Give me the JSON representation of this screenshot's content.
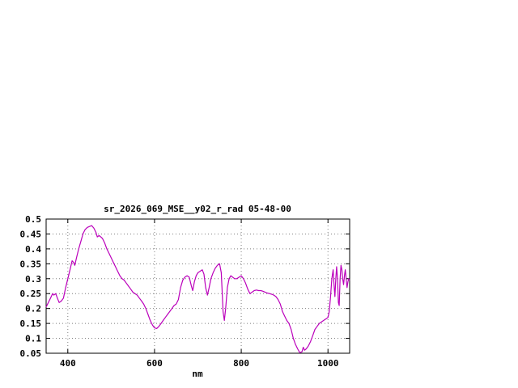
{
  "chart_data": {
    "type": "line",
    "title": "sr_2026_069_MSE__y02_r_rad 05-48-00",
    "xlabel": "nm",
    "ylabel": "",
    "xlim": [
      350,
      1050
    ],
    "ylim": [
      0.05,
      0.5
    ],
    "grid": true,
    "legend": "none",
    "line_color": "#bb00bb",
    "x_ticks": [
      {
        "value": 400,
        "label": "400"
      },
      {
        "value": 600,
        "label": "600"
      },
      {
        "value": 800,
        "label": "800"
      },
      {
        "value": 1000,
        "label": "1000"
      }
    ],
    "y_ticks": [
      {
        "value": 0.5,
        "label": "0.5"
      },
      {
        "value": 0.45,
        "label": "0.45"
      },
      {
        "value": 0.4,
        "label": "0.4"
      },
      {
        "value": 0.35,
        "label": "0.35"
      },
      {
        "value": 0.3,
        "label": "0.3"
      },
      {
        "value": 0.25,
        "label": "0.25"
      },
      {
        "value": 0.2,
        "label": "0.2"
      },
      {
        "value": 0.15,
        "label": "0.15"
      },
      {
        "value": 0.1,
        "label": "0.1"
      },
      {
        "value": 0.05,
        "label": "0.05"
      }
    ],
    "series": [
      {
        "points": [
          [
            350,
            0.205
          ],
          [
            355,
            0.22
          ],
          [
            360,
            0.235
          ],
          [
            365,
            0.25
          ],
          [
            368,
            0.245
          ],
          [
            372,
            0.25
          ],
          [
            376,
            0.235
          ],
          [
            380,
            0.22
          ],
          [
            385,
            0.225
          ],
          [
            390,
            0.235
          ],
          [
            395,
            0.27
          ],
          [
            400,
            0.3
          ],
          [
            405,
            0.33
          ],
          [
            410,
            0.36
          ],
          [
            413,
            0.355
          ],
          [
            416,
            0.345
          ],
          [
            420,
            0.37
          ],
          [
            425,
            0.4
          ],
          [
            430,
            0.425
          ],
          [
            435,
            0.45
          ],
          [
            440,
            0.465
          ],
          [
            445,
            0.472
          ],
          [
            450,
            0.475
          ],
          [
            455,
            0.478
          ],
          [
            460,
            0.47
          ],
          [
            465,
            0.455
          ],
          [
            468,
            0.44
          ],
          [
            472,
            0.445
          ],
          [
            476,
            0.44
          ],
          [
            480,
            0.435
          ],
          [
            485,
            0.42
          ],
          [
            490,
            0.4
          ],
          [
            495,
            0.385
          ],
          [
            500,
            0.37
          ],
          [
            505,
            0.355
          ],
          [
            510,
            0.34
          ],
          [
            515,
            0.325
          ],
          [
            520,
            0.31
          ],
          [
            525,
            0.3
          ],
          [
            530,
            0.295
          ],
          [
            535,
            0.285
          ],
          [
            540,
            0.275
          ],
          [
            545,
            0.265
          ],
          [
            550,
            0.255
          ],
          [
            555,
            0.25
          ],
          [
            560,
            0.245
          ],
          [
            565,
            0.235
          ],
          [
            570,
            0.225
          ],
          [
            575,
            0.215
          ],
          [
            580,
            0.2
          ],
          [
            585,
            0.18
          ],
          [
            590,
            0.16
          ],
          [
            595,
            0.145
          ],
          [
            600,
            0.135
          ],
          [
            605,
            0.133
          ],
          [
            610,
            0.14
          ],
          [
            615,
            0.15
          ],
          [
            620,
            0.16
          ],
          [
            625,
            0.17
          ],
          [
            630,
            0.18
          ],
          [
            635,
            0.19
          ],
          [
            640,
            0.2
          ],
          [
            645,
            0.21
          ],
          [
            650,
            0.215
          ],
          [
            655,
            0.23
          ],
          [
            660,
            0.27
          ],
          [
            665,
            0.295
          ],
          [
            670,
            0.305
          ],
          [
            675,
            0.31
          ],
          [
            680,
            0.305
          ],
          [
            685,
            0.275
          ],
          [
            688,
            0.26
          ],
          [
            692,
            0.29
          ],
          [
            696,
            0.31
          ],
          [
            700,
            0.32
          ],
          [
            705,
            0.325
          ],
          [
            710,
            0.33
          ],
          [
            714,
            0.315
          ],
          [
            718,
            0.27
          ],
          [
            722,
            0.245
          ],
          [
            726,
            0.27
          ],
          [
            730,
            0.3
          ],
          [
            735,
            0.32
          ],
          [
            740,
            0.335
          ],
          [
            745,
            0.345
          ],
          [
            750,
            0.35
          ],
          [
            754,
            0.32
          ],
          [
            758,
            0.19
          ],
          [
            761,
            0.16
          ],
          [
            764,
            0.2
          ],
          [
            768,
            0.27
          ],
          [
            772,
            0.3
          ],
          [
            776,
            0.31
          ],
          [
            780,
            0.305
          ],
          [
            785,
            0.3
          ],
          [
            790,
            0.3
          ],
          [
            795,
            0.305
          ],
          [
            800,
            0.31
          ],
          [
            805,
            0.3
          ],
          [
            810,
            0.285
          ],
          [
            815,
            0.265
          ],
          [
            820,
            0.25
          ],
          [
            825,
            0.255
          ],
          [
            830,
            0.26
          ],
          [
            835,
            0.262
          ],
          [
            840,
            0.26
          ],
          [
            845,
            0.26
          ],
          [
            850,
            0.258
          ],
          [
            855,
            0.255
          ],
          [
            860,
            0.252
          ],
          [
            865,
            0.25
          ],
          [
            870,
            0.248
          ],
          [
            875,
            0.245
          ],
          [
            880,
            0.24
          ],
          [
            885,
            0.23
          ],
          [
            890,
            0.215
          ],
          [
            895,
            0.19
          ],
          [
            900,
            0.175
          ],
          [
            905,
            0.16
          ],
          [
            910,
            0.15
          ],
          [
            915,
            0.13
          ],
          [
            920,
            0.1
          ],
          [
            925,
            0.08
          ],
          [
            930,
            0.065
          ],
          [
            935,
            0.052
          ],
          [
            940,
            0.055
          ],
          [
            943,
            0.07
          ],
          [
            946,
            0.06
          ],
          [
            950,
            0.065
          ],
          [
            955,
            0.075
          ],
          [
            960,
            0.09
          ],
          [
            965,
            0.11
          ],
          [
            970,
            0.13
          ],
          [
            975,
            0.14
          ],
          [
            980,
            0.15
          ],
          [
            985,
            0.155
          ],
          [
            990,
            0.16
          ],
          [
            995,
            0.165
          ],
          [
            1000,
            0.17
          ],
          [
            1003,
            0.19
          ],
          [
            1006,
            0.24
          ],
          [
            1009,
            0.3
          ],
          [
            1012,
            0.33
          ],
          [
            1014,
            0.28
          ],
          [
            1016,
            0.24
          ],
          [
            1018,
            0.3
          ],
          [
            1020,
            0.34
          ],
          [
            1022,
            0.3
          ],
          [
            1024,
            0.22
          ],
          [
            1026,
            0.21
          ],
          [
            1028,
            0.3
          ],
          [
            1030,
            0.345
          ],
          [
            1032,
            0.33
          ],
          [
            1034,
            0.3
          ],
          [
            1036,
            0.28
          ],
          [
            1038,
            0.31
          ],
          [
            1040,
            0.33
          ],
          [
            1042,
            0.3
          ],
          [
            1044,
            0.27
          ],
          [
            1046,
            0.29
          ],
          [
            1048,
            0.3
          ],
          [
            1050,
            0.295
          ]
        ]
      }
    ]
  }
}
